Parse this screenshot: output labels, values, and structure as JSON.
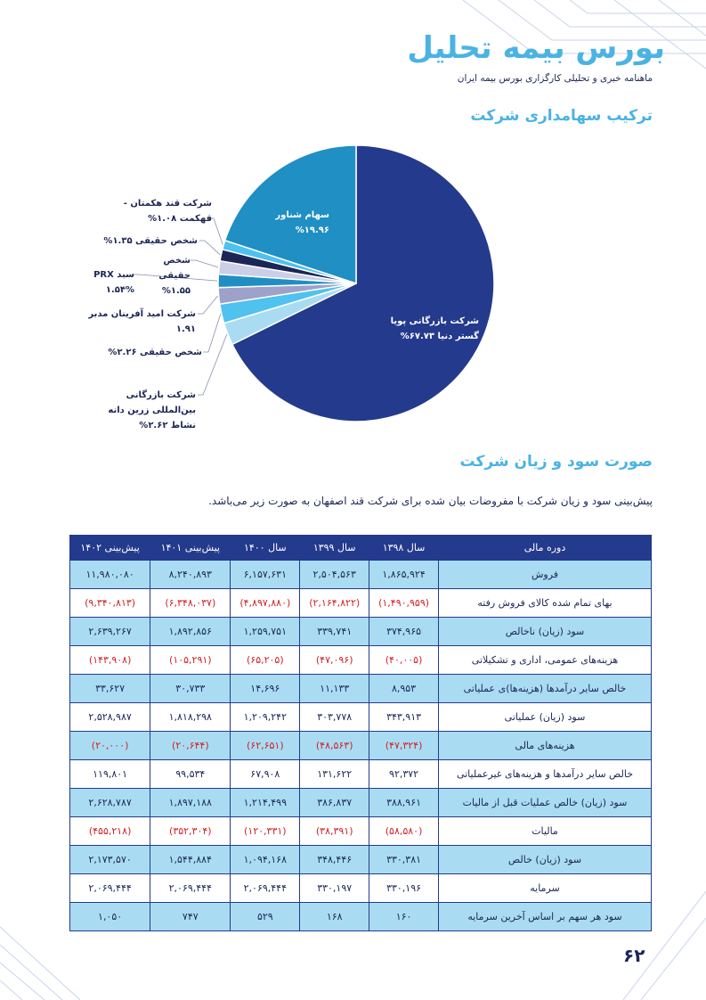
{
  "header": {
    "title": "بورس بیمه تحلیل",
    "subtitle": "ماهنامه خبری و تحلیلی کارگزاری بورس بیمه ایران"
  },
  "section_1_title": "ترکیب سهامداری شرکت",
  "chart_data": {
    "type": "pie",
    "categories": [
      "شرکت بازرگانی پویا گستر دنیا",
      "شرکت بازرگانی بین‌المللی زرین دانه نشاط",
      "شخص حقیقی",
      "شرکت امید آفرینان مدبر",
      "سبد PRX",
      "شخص حقیقی",
      "شخص حقیقی",
      "شرکت قند هکمتان - قهکمت",
      "سهام شناور"
    ],
    "values": [
      67.73,
      2.62,
      2.26,
      1.91,
      1.54,
      1.55,
      1.35,
      1.08,
      19.96
    ],
    "value_labels": [
      "۶۷.۷۳%",
      "۲.۶۲%",
      "۲.۲۶%",
      "۱.۹۱",
      "۱.۵۴%",
      "۱.۵۵%",
      "۱.۳۵%",
      "۱.۰۸%",
      "۱۹.۹۶%"
    ],
    "colors": [
      "#243a8c",
      "#a9dcf2",
      "#4fc2ef",
      "#9ea1c9",
      "#1f8fc3",
      "#cbcfe8",
      "#1c2656",
      "#4dc1ef",
      "#1f8fc4"
    ]
  },
  "section_2_title": "صورت سود و زیان شرکت",
  "paragraph": "پیش‌بینی سود و زیان شرکت با مفروضات بیان شده برای شرکت قند اصفهان به صورت زیر می‌باشد.",
  "table": {
    "header": [
      "دوره مالی",
      "سال ۱۳۹۸",
      "سال ۱۳۹۹",
      "سال ۱۴۰۰",
      "پیش‌بینی ۱۴۰۱",
      "پیش‌بینی ۱۴۰۲"
    ],
    "rows": [
      [
        "فروش",
        "۱,۸۶۵,۹۲۴",
        "۲,۵۰۴,۵۶۳",
        "۶,۱۵۷,۶۳۱",
        "۸,۲۴۰,۸۹۳",
        "۱۱,۹۸۰,۰۸۰"
      ],
      [
        "بهای تمام شده کالای فروش رفته",
        "(۱,۴۹۰,۹۵۹)",
        "(۲,۱۶۴,۸۲۲)",
        "(۴,۸۹۷,۸۸۰)",
        "(۶,۳۴۸,۰۳۷)",
        "(۹,۳۴۰,۸۱۳)"
      ],
      [
        "سود (زیان) ناخالص",
        "۳۷۴,۹۶۵",
        "۳۳۹,۷۴۱",
        "۱,۲۵۹,۷۵۱",
        "۱,۸۹۲,۸۵۶",
        "۲,۶۳۹,۲۶۷"
      ],
      [
        "هزینه‌های عمومی، اداری و تشکیلاتی",
        "(۴۰,۰۰۵)",
        "(۴۷,۰۹۶)",
        "(۶۵,۲۰۵)",
        "(۱۰۵,۲۹۱)",
        "(۱۴۳,۹۰۸)"
      ],
      [
        "خالص سایر درآمدها (هزینه‌ها)ی عملیاتی",
        "۸,۹۵۳",
        "۱۱,۱۳۳",
        "۱۴,۶۹۶",
        "۳۰,۷۳۳",
        "۳۳,۶۲۷"
      ],
      [
        "سود (زیان) عملیاتی",
        "۳۴۳,۹۱۳",
        "۳۰۳,۷۷۸",
        "۱,۲۰۹,۲۴۲",
        "۱,۸۱۸,۲۹۸",
        "۲,۵۲۸,۹۸۷"
      ],
      [
        "هزینه‌های مالی",
        "(۴۷,۳۲۴)",
        "(۴۸,۵۶۳)",
        "(۶۲,۶۵۱)",
        "(۲۰,۶۴۴)",
        "(۲۰,۰۰۰)"
      ],
      [
        "خالص سایر درآمدها و هزینه‌های غیرعملیاتی",
        "۹۲,۳۷۲",
        "۱۳۱,۶۲۲",
        "۶۷,۹۰۸",
        "۹۹,۵۳۴",
        "۱۱۹,۸۰۱"
      ],
      [
        "سود (زیان) خالص عملیات قبل از مالیات",
        "۳۸۸,۹۶۱",
        "۳۸۶,۸۳۷",
        "۱,۲۱۴,۴۹۹",
        "۱,۸۹۷,۱۸۸",
        "۲,۶۲۸,۷۸۷"
      ],
      [
        "مالیات",
        "(۵۸,۵۸۰)",
        "(۳۸,۳۹۱)",
        "(۱۲۰,۳۳۱)",
        "(۳۵۲,۳۰۴)",
        "(۴۵۵,۲۱۸)"
      ],
      [
        "سود (زیان) خالص",
        "۳۳۰,۳۸۱",
        "۳۴۸,۴۴۶",
        "۱,۰۹۴,۱۶۸",
        "۱,۵۴۴,۸۸۴",
        "۲,۱۷۳,۵۷۰"
      ],
      [
        "سرمایه",
        "۳۳۰,۱۹۶",
        "۳۳۰,۱۹۷",
        "۲,۰۶۹,۴۴۴",
        "۲,۰۶۹,۴۴۴",
        "۲,۰۶۹,۴۴۴"
      ],
      [
        "سود هر سهم بر اساس آخرین سرمایه",
        "۱۶۰",
        "۱۶۸",
        "۵۲۹",
        "۷۴۷",
        "۱,۰۵۰"
      ]
    ]
  },
  "page_number": "۶۲"
}
